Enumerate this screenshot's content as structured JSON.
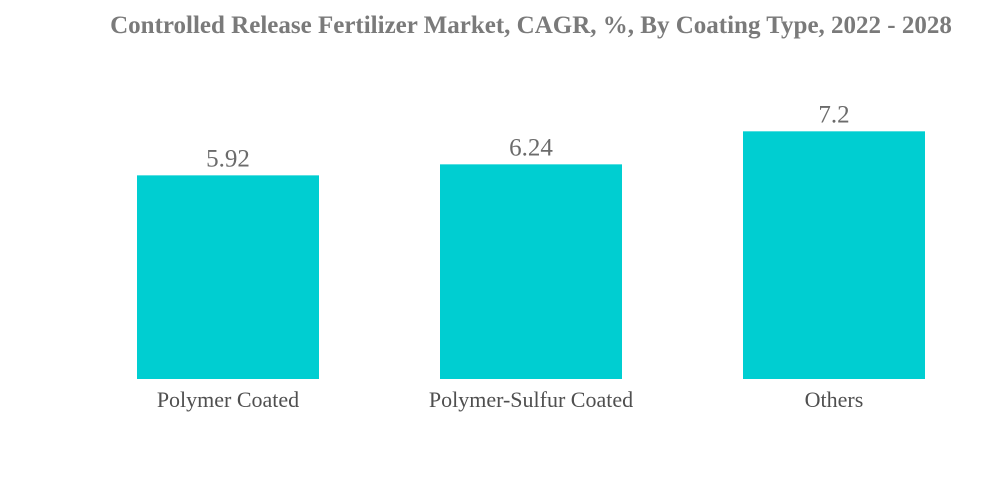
{
  "chart_data": {
    "type": "bar",
    "title": "Controlled Release Fertilizer Market, CAGR, %, By Coating Type, 2022 - 2028",
    "categories": [
      "Polymer Coated",
      "Polymer-Sulfur Coated",
      "Others"
    ],
    "values": [
      5.92,
      6.24,
      7.2
    ],
    "value_labels": [
      "5.92",
      "6.24",
      "7.2"
    ],
    "bar_color": "#00CED1",
    "text_color": "#7a7a7a",
    "xlabel": "",
    "ylabel": "",
    "grid": false,
    "legend": "none"
  }
}
